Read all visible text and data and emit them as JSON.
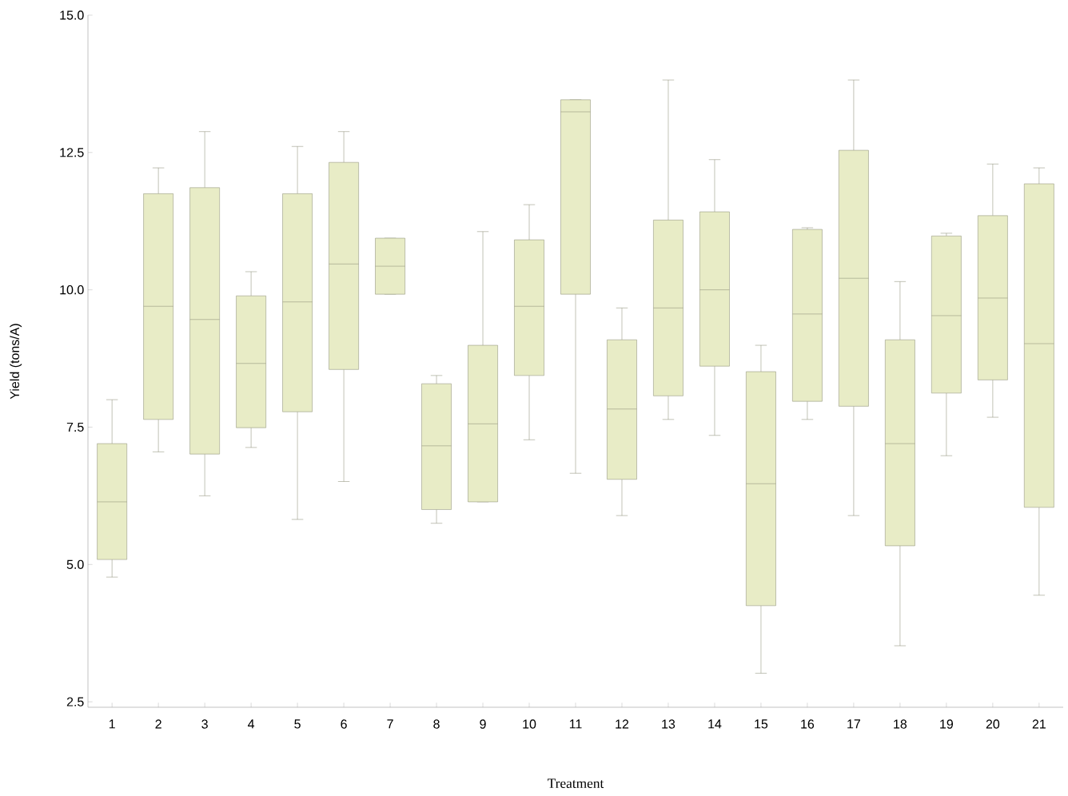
{
  "chart_data": {
    "type": "box",
    "xlabel": "Treatment",
    "ylabel": "Yield (tons/A)",
    "categories": [
      "1",
      "2",
      "3",
      "4",
      "5",
      "6",
      "7",
      "8",
      "9",
      "10",
      "11",
      "12",
      "13",
      "14",
      "15",
      "16",
      "17",
      "18",
      "19",
      "20",
      "21"
    ],
    "ylim": [
      2.4,
      15.0
    ],
    "yticks": [
      2.5,
      {
        "value": 5,
        "label": "5.0"
      },
      7.5,
      {
        "value": 10,
        "label": "10.0"
      },
      12.5,
      {
        "value": 15,
        "label": "15.0"
      }
    ],
    "grid": false,
    "series": [
      {
        "color": "#e8ecc6",
        "boxes": [
          {
            "low": 4.77,
            "q1": 5.09,
            "median": 6.14,
            "q3": 7.2,
            "high": 8.0
          },
          {
            "low": 7.05,
            "q1": 7.64,
            "median": 9.7,
            "q3": 11.75,
            "high": 12.22
          },
          {
            "low": 6.25,
            "q1": 7.01,
            "median": 9.46,
            "q3": 11.86,
            "high": 12.88
          },
          {
            "low": 7.13,
            "q1": 7.49,
            "median": 8.66,
            "q3": 9.89,
            "high": 10.33
          },
          {
            "low": 5.82,
            "q1": 7.78,
            "median": 9.78,
            "q3": 11.75,
            "high": 12.61
          },
          {
            "low": 6.51,
            "q1": 8.55,
            "median": 10.47,
            "q3": 12.32,
            "high": 12.88
          },
          {
            "low": 9.92,
            "q1": 9.92,
            "median": 10.43,
            "q3": 10.94,
            "high": 10.94
          },
          {
            "low": 5.75,
            "q1": 6.0,
            "median": 7.16,
            "q3": 8.29,
            "high": 8.44
          },
          {
            "low": 6.14,
            "q1": 6.14,
            "median": 7.56,
            "q3": 8.99,
            "high": 11.06
          },
          {
            "low": 7.27,
            "q1": 8.44,
            "median": 9.7,
            "q3": 10.91,
            "high": 11.55
          },
          {
            "low": 6.66,
            "q1": 9.92,
            "median": 13.24,
            "q3": 13.46,
            "high": 13.46
          },
          {
            "low": 5.89,
            "q1": 6.55,
            "median": 7.83,
            "q3": 9.09,
            "high": 9.67
          },
          {
            "low": 7.64,
            "q1": 8.07,
            "median": 9.67,
            "q3": 11.27,
            "high": 13.82
          },
          {
            "low": 7.35,
            "q1": 8.61,
            "median": 10.0,
            "q3": 11.42,
            "high": 12.37
          },
          {
            "low": 3.02,
            "q1": 4.25,
            "median": 6.47,
            "q3": 8.51,
            "high": 8.99
          },
          {
            "low": 7.64,
            "q1": 7.97,
            "median": 9.56,
            "q3": 11.1,
            "high": 11.13
          },
          {
            "low": 5.89,
            "q1": 7.88,
            "median": 10.21,
            "q3": 12.54,
            "high": 13.82
          },
          {
            "low": 3.52,
            "q1": 5.34,
            "median": 7.2,
            "q3": 9.09,
            "high": 10.15
          },
          {
            "low": 6.98,
            "q1": 8.12,
            "median": 9.53,
            "q3": 10.98,
            "high": 11.03
          },
          {
            "low": 7.68,
            "q1": 8.36,
            "median": 9.85,
            "q3": 11.35,
            "high": 12.29
          },
          {
            "low": 4.44,
            "q1": 6.04,
            "median": 9.02,
            "q3": 11.93,
            "high": 12.22
          }
        ]
      }
    ]
  }
}
